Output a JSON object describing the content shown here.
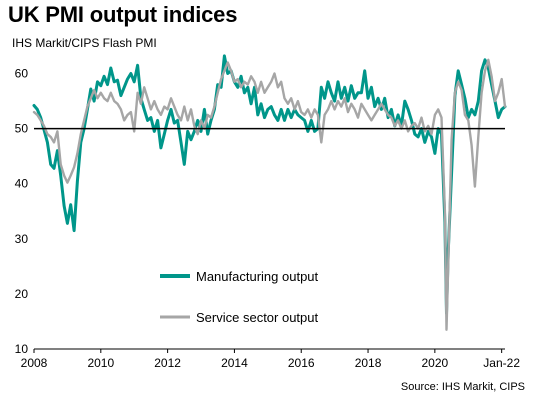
{
  "chart_data": {
    "type": "line",
    "title": "UK PMI output indices",
    "subtitle": "IHS Markit/CIPS Flash PMI",
    "source": "Source: IHS Markit, CIPS",
    "xlabel": "",
    "ylabel": "",
    "ylim": [
      10,
      65
    ],
    "yticks": [
      10,
      20,
      30,
      40,
      50,
      60
    ],
    "x_tick_labels": [
      {
        "x": 2008,
        "label": "2008"
      },
      {
        "x": 2010,
        "label": "2010"
      },
      {
        "x": 2012,
        "label": "2012"
      },
      {
        "x": 2014,
        "label": "2014"
      },
      {
        "x": 2016,
        "label": "2016"
      },
      {
        "x": 2018,
        "label": "2018"
      },
      {
        "x": 2020,
        "label": "2020"
      },
      {
        "x": 2022,
        "label": "Jan-22"
      }
    ],
    "xlim": [
      2008,
      2022.1
    ],
    "reference_line": 50,
    "grid": false,
    "legend_position": "bottom-left",
    "series": [
      {
        "name": "Manufacturing output",
        "color": "#00968a",
        "points": [
          [
            2008.0,
            54.2
          ],
          [
            2008.1,
            53.5
          ],
          [
            2008.2,
            52.0
          ],
          [
            2008.3,
            49.8
          ],
          [
            2008.4,
            47.5
          ],
          [
            2008.5,
            43.5
          ],
          [
            2008.6,
            42.8
          ],
          [
            2008.7,
            46.0
          ],
          [
            2008.8,
            41.5
          ],
          [
            2008.9,
            36.0
          ],
          [
            2009.0,
            32.8
          ],
          [
            2009.1,
            36.2
          ],
          [
            2009.2,
            31.5
          ],
          [
            2009.3,
            40.5
          ],
          [
            2009.4,
            47.5
          ],
          [
            2009.5,
            50.0
          ],
          [
            2009.6,
            53.5
          ],
          [
            2009.7,
            57.2
          ],
          [
            2009.8,
            55.0
          ],
          [
            2009.9,
            58.5
          ],
          [
            2010.0,
            57.8
          ],
          [
            2010.1,
            59.5
          ],
          [
            2010.2,
            58.0
          ],
          [
            2010.3,
            61.0
          ],
          [
            2010.4,
            58.5
          ],
          [
            2010.5,
            58.8
          ],
          [
            2010.6,
            56.0
          ],
          [
            2010.7,
            57.5
          ],
          [
            2010.8,
            59.0
          ],
          [
            2010.9,
            60.0
          ],
          [
            2011.0,
            58.5
          ],
          [
            2011.1,
            61.5
          ],
          [
            2011.2,
            55.5
          ],
          [
            2011.3,
            53.5
          ],
          [
            2011.4,
            51.5
          ],
          [
            2011.5,
            52.0
          ],
          [
            2011.6,
            49.5
          ],
          [
            2011.7,
            51.5
          ],
          [
            2011.8,
            46.5
          ],
          [
            2011.9,
            49.0
          ],
          [
            2012.0,
            51.5
          ],
          [
            2012.1,
            53.5
          ],
          [
            2012.2,
            51.0
          ],
          [
            2012.3,
            51.5
          ],
          [
            2012.4,
            47.5
          ],
          [
            2012.5,
            43.5
          ],
          [
            2012.6,
            49.5
          ],
          [
            2012.7,
            48.0
          ],
          [
            2012.8,
            49.5
          ],
          [
            2012.9,
            51.5
          ],
          [
            2013.0,
            49.5
          ],
          [
            2013.1,
            53.5
          ],
          [
            2013.2,
            49.0
          ],
          [
            2013.3,
            51.5
          ],
          [
            2013.4,
            53.5
          ],
          [
            2013.5,
            58.0
          ],
          [
            2013.6,
            57.5
          ],
          [
            2013.7,
            63.2
          ],
          [
            2013.8,
            60.0
          ],
          [
            2013.9,
            60.5
          ],
          [
            2014.0,
            58.5
          ],
          [
            2014.1,
            57.5
          ],
          [
            2014.2,
            59.5
          ],
          [
            2014.3,
            56.5
          ],
          [
            2014.4,
            57.5
          ],
          [
            2014.5,
            54.5
          ],
          [
            2014.6,
            57.5
          ],
          [
            2014.7,
            52.5
          ],
          [
            2014.8,
            54.5
          ],
          [
            2014.9,
            52.0
          ],
          [
            2015.0,
            53.5
          ],
          [
            2015.1,
            54.0
          ],
          [
            2015.2,
            52.5
          ],
          [
            2015.3,
            51.5
          ],
          [
            2015.4,
            53.5
          ],
          [
            2015.5,
            51.5
          ],
          [
            2015.6,
            53.5
          ],
          [
            2015.7,
            52.0
          ],
          [
            2015.8,
            53.5
          ],
          [
            2015.9,
            52.5
          ],
          [
            2016.0,
            52.0
          ],
          [
            2016.1,
            51.5
          ],
          [
            2016.2,
            49.5
          ],
          [
            2016.3,
            51.5
          ],
          [
            2016.4,
            49.5
          ],
          [
            2016.5,
            50.0
          ],
          [
            2016.6,
            57.5
          ],
          [
            2016.7,
            55.5
          ],
          [
            2016.8,
            58.5
          ],
          [
            2016.9,
            56.5
          ],
          [
            2017.0,
            55.0
          ],
          [
            2017.1,
            58.5
          ],
          [
            2017.2,
            55.5
          ],
          [
            2017.3,
            57.5
          ],
          [
            2017.4,
            55.0
          ],
          [
            2017.5,
            57.8
          ],
          [
            2017.6,
            55.5
          ],
          [
            2017.7,
            56.5
          ],
          [
            2017.8,
            56.5
          ],
          [
            2017.9,
            60.5
          ],
          [
            2018.0,
            55.5
          ],
          [
            2018.1,
            57.5
          ],
          [
            2018.2,
            54.0
          ],
          [
            2018.3,
            55.5
          ],
          [
            2018.4,
            53.5
          ],
          [
            2018.5,
            55.5
          ],
          [
            2018.6,
            52.0
          ],
          [
            2018.7,
            53.5
          ],
          [
            2018.8,
            50.5
          ],
          [
            2018.9,
            52.5
          ],
          [
            2019.0,
            50.5
          ],
          [
            2019.1,
            55.0
          ],
          [
            2019.2,
            53.5
          ],
          [
            2019.3,
            51.5
          ],
          [
            2019.4,
            49.0
          ],
          [
            2019.5,
            48.5
          ],
          [
            2019.6,
            50.0
          ],
          [
            2019.7,
            47.5
          ],
          [
            2019.8,
            49.5
          ],
          [
            2019.9,
            48.5
          ],
          [
            2020.0,
            45.5
          ],
          [
            2020.1,
            50.0
          ],
          [
            2020.2,
            49.0
          ],
          [
            2020.3,
            33.0
          ],
          [
            2020.35,
            16.5
          ],
          [
            2020.4,
            27.5
          ],
          [
            2020.5,
            42.0
          ],
          [
            2020.6,
            56.0
          ],
          [
            2020.7,
            60.5
          ],
          [
            2020.8,
            58.0
          ],
          [
            2020.9,
            55.5
          ],
          [
            2021.0,
            52.0
          ],
          [
            2021.1,
            53.5
          ],
          [
            2021.2,
            52.5
          ],
          [
            2021.3,
            55.0
          ],
          [
            2021.4,
            60.5
          ],
          [
            2021.5,
            62.5
          ],
          [
            2021.6,
            61.0
          ],
          [
            2021.7,
            58.0
          ],
          [
            2021.8,
            55.0
          ],
          [
            2021.9,
            52.0
          ],
          [
            2022.0,
            53.5
          ],
          [
            2022.1,
            54.0
          ]
        ]
      },
      {
        "name": "Service sector output",
        "color": "#a6a6a6",
        "points": [
          [
            2008.0,
            53.0
          ],
          [
            2008.1,
            52.5
          ],
          [
            2008.2,
            51.5
          ],
          [
            2008.3,
            50.5
          ],
          [
            2008.4,
            49.0
          ],
          [
            2008.5,
            48.5
          ],
          [
            2008.6,
            47.5
          ],
          [
            2008.7,
            49.5
          ],
          [
            2008.8,
            43.5
          ],
          [
            2008.9,
            41.5
          ],
          [
            2009.0,
            40.2
          ],
          [
            2009.1,
            41.5
          ],
          [
            2009.2,
            43.0
          ],
          [
            2009.3,
            45.5
          ],
          [
            2009.4,
            49.0
          ],
          [
            2009.5,
            51.5
          ],
          [
            2009.6,
            54.0
          ],
          [
            2009.7,
            55.5
          ],
          [
            2009.8,
            57.0
          ],
          [
            2009.9,
            55.5
          ],
          [
            2010.0,
            56.5
          ],
          [
            2010.1,
            55.5
          ],
          [
            2010.2,
            55.0
          ],
          [
            2010.3,
            56.5
          ],
          [
            2010.4,
            55.0
          ],
          [
            2010.5,
            54.5
          ],
          [
            2010.6,
            53.5
          ],
          [
            2010.7,
            51.5
          ],
          [
            2010.8,
            52.5
          ],
          [
            2010.9,
            53.0
          ],
          [
            2011.0,
            49.5
          ],
          [
            2011.1,
            56.5
          ],
          [
            2011.2,
            54.5
          ],
          [
            2011.3,
            57.5
          ],
          [
            2011.4,
            55.5
          ],
          [
            2011.5,
            53.5
          ],
          [
            2011.6,
            55.0
          ],
          [
            2011.7,
            53.5
          ],
          [
            2011.8,
            52.5
          ],
          [
            2011.9,
            54.0
          ],
          [
            2012.0,
            53.5
          ],
          [
            2012.1,
            55.5
          ],
          [
            2012.2,
            54.0
          ],
          [
            2012.3,
            52.5
          ],
          [
            2012.4,
            51.5
          ],
          [
            2012.5,
            54.0
          ],
          [
            2012.6,
            51.5
          ],
          [
            2012.7,
            53.5
          ],
          [
            2012.8,
            50.5
          ],
          [
            2012.9,
            49.0
          ],
          [
            2013.0,
            51.5
          ],
          [
            2013.1,
            50.0
          ],
          [
            2013.2,
            52.5
          ],
          [
            2013.3,
            52.0
          ],
          [
            2013.4,
            54.0
          ],
          [
            2013.5,
            56.5
          ],
          [
            2013.6,
            59.0
          ],
          [
            2013.7,
            60.5
          ],
          [
            2013.8,
            62.0
          ],
          [
            2013.9,
            60.5
          ],
          [
            2014.0,
            58.5
          ],
          [
            2014.1,
            59.0
          ],
          [
            2014.2,
            57.5
          ],
          [
            2014.3,
            58.5
          ],
          [
            2014.4,
            58.0
          ],
          [
            2014.5,
            59.5
          ],
          [
            2014.6,
            58.5
          ],
          [
            2014.7,
            56.5
          ],
          [
            2014.8,
            58.5
          ],
          [
            2014.9,
            56.5
          ],
          [
            2015.0,
            57.5
          ],
          [
            2015.1,
            58.5
          ],
          [
            2015.2,
            60.0
          ],
          [
            2015.3,
            57.5
          ],
          [
            2015.4,
            58.5
          ],
          [
            2015.5,
            55.5
          ],
          [
            2015.6,
            54.5
          ],
          [
            2015.7,
            55.5
          ],
          [
            2015.8,
            53.5
          ],
          [
            2015.9,
            55.0
          ],
          [
            2016.0,
            53.0
          ],
          [
            2016.1,
            52.5
          ],
          [
            2016.2,
            53.5
          ],
          [
            2016.3,
            52.0
          ],
          [
            2016.4,
            53.5
          ],
          [
            2016.5,
            52.5
          ],
          [
            2016.6,
            47.5
          ],
          [
            2016.7,
            52.5
          ],
          [
            2016.8,
            53.5
          ],
          [
            2016.9,
            55.0
          ],
          [
            2017.0,
            53.5
          ],
          [
            2017.1,
            55.0
          ],
          [
            2017.2,
            54.0
          ],
          [
            2017.3,
            55.5
          ],
          [
            2017.4,
            53.0
          ],
          [
            2017.5,
            54.5
          ],
          [
            2017.6,
            53.5
          ],
          [
            2017.7,
            52.0
          ],
          [
            2017.8,
            54.5
          ],
          [
            2017.9,
            53.5
          ],
          [
            2018.0,
            52.5
          ],
          [
            2018.1,
            51.5
          ],
          [
            2018.2,
            52.5
          ],
          [
            2018.3,
            53.5
          ],
          [
            2018.4,
            54.5
          ],
          [
            2018.5,
            53.5
          ],
          [
            2018.6,
            52.5
          ],
          [
            2018.7,
            52.0
          ],
          [
            2018.8,
            50.5
          ],
          [
            2018.9,
            51.5
          ],
          [
            2019.0,
            50.0
          ],
          [
            2019.1,
            51.5
          ],
          [
            2019.2,
            49.5
          ],
          [
            2019.3,
            50.5
          ],
          [
            2019.4,
            51.0
          ],
          [
            2019.5,
            50.0
          ],
          [
            2019.6,
            52.0
          ],
          [
            2019.7,
            49.5
          ],
          [
            2019.8,
            50.5
          ],
          [
            2019.9,
            49.0
          ],
          [
            2020.0,
            52.5
          ],
          [
            2020.1,
            53.5
          ],
          [
            2020.2,
            52.0
          ],
          [
            2020.3,
            35.0
          ],
          [
            2020.35,
            13.5
          ],
          [
            2020.4,
            25.0
          ],
          [
            2020.5,
            48.0
          ],
          [
            2020.6,
            56.5
          ],
          [
            2020.7,
            58.5
          ],
          [
            2020.8,
            57.0
          ],
          [
            2020.9,
            52.5
          ],
          [
            2021.0,
            51.5
          ],
          [
            2021.1,
            47.0
          ],
          [
            2021.2,
            39.5
          ],
          [
            2021.3,
            48.5
          ],
          [
            2021.4,
            56.5
          ],
          [
            2021.5,
            60.5
          ],
          [
            2021.6,
            62.5
          ],
          [
            2021.7,
            59.5
          ],
          [
            2021.8,
            55.0
          ],
          [
            2021.9,
            56.5
          ],
          [
            2022.0,
            59.0
          ],
          [
            2022.1,
            54.0
          ]
        ]
      }
    ]
  }
}
